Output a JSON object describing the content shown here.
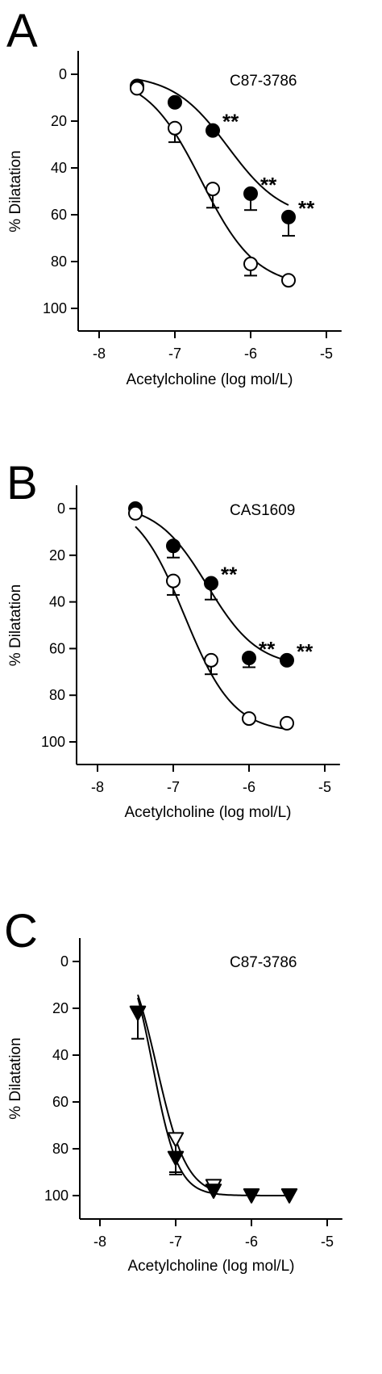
{
  "chart_data": [
    {
      "type": "line",
      "panel_label": "A",
      "annotation": "C87-3786",
      "xlabel": "Acetylcholine (log mol/L)",
      "ylabel": "% Dilatation",
      "xlim": [
        -8.3,
        -4.8
      ],
      "ylim": [
        110,
        -10
      ],
      "y_inverted": true,
      "xticks": [
        -8,
        -7,
        -6,
        -5
      ],
      "yticks": [
        0,
        20,
        40,
        60,
        80,
        100
      ],
      "series": [
        {
          "marker": "filled-circle",
          "x": [
            -7.5,
            -7.0,
            -6.5,
            -6.0,
            -5.5
          ],
          "y": [
            5,
            12,
            24,
            51,
            61
          ],
          "err": [
            0,
            0,
            0,
            7,
            8
          ],
          "fit": {
            "bottom": 0,
            "top": 62,
            "logEC50": -6.3,
            "hill": 1.2
          },
          "significance": [
            "",
            "",
            "**",
            "**",
            "**"
          ]
        },
        {
          "marker": "open-circle",
          "x": [
            -7.5,
            -7.0,
            -6.5,
            -6.0,
            -5.5
          ],
          "y": [
            6,
            23,
            49,
            81,
            88
          ],
          "err": [
            0,
            6,
            8,
            5,
            0
          ],
          "fit": {
            "bottom": 0,
            "top": 91,
            "logEC50": -6.65,
            "hill": 1.2
          }
        }
      ]
    },
    {
      "type": "line",
      "panel_label": "B",
      "annotation": "CAS1609",
      "xlabel": "Acetylcholine (log mol/L)",
      "ylabel": "% Dilatation",
      "xlim": [
        -8.3,
        -4.8
      ],
      "ylim": [
        110,
        -10
      ],
      "y_inverted": true,
      "xticks": [
        -8,
        -7,
        -6,
        -5
      ],
      "yticks": [
        0,
        20,
        40,
        60,
        80,
        100
      ],
      "series": [
        {
          "marker": "filled-circle",
          "x": [
            -7.5,
            -7.0,
            -6.5,
            -6.0,
            -5.5
          ],
          "y": [
            0,
            16,
            32,
            64,
            65
          ],
          "err": [
            0,
            5,
            7,
            4,
            0
          ],
          "fit": {
            "bottom": -2,
            "top": 68,
            "logEC50": -6.55,
            "hill": 1.3
          },
          "significance": [
            "",
            "",
            "**",
            "**",
            "**"
          ]
        },
        {
          "marker": "open-circle",
          "x": [
            -7.5,
            -7.0,
            -6.5,
            -6.0,
            -5.5
          ],
          "y": [
            2,
            31,
            65,
            90,
            92
          ],
          "err": [
            0,
            6,
            6,
            0,
            0
          ],
          "fit": {
            "bottom": -4,
            "top": 96,
            "logEC50": -6.85,
            "hill": 1.35
          }
        }
      ]
    },
    {
      "type": "line",
      "panel_label": "C",
      "annotation": "C87-3786",
      "xlabel": "Acetylcholine (log mol/L)",
      "ylabel": "% Dilatation",
      "xlim": [
        -8.3,
        -4.8
      ],
      "ylim": [
        110,
        -10
      ],
      "y_inverted": true,
      "xticks": [
        -8,
        -7,
        -6,
        -5
      ],
      "yticks": [
        0,
        20,
        40,
        60,
        80,
        100
      ],
      "series": [
        {
          "marker": "open-triangle-down",
          "x": [
            -7.5,
            -7.0,
            -6.5
          ],
          "y": [
            22,
            76,
            96
          ],
          "err": [
            0,
            15,
            0
          ],
          "fit": {
            "bottom": -10,
            "top": 100,
            "logEC50": -7.25,
            "hill": 2.2
          }
        },
        {
          "marker": "filled-triangle-down",
          "x": [
            -7.5,
            -7.0,
            -6.5,
            -6.0,
            -5.5
          ],
          "y": [
            22,
            84,
            98,
            100,
            100
          ],
          "err": [
            11,
            6,
            0,
            0,
            0
          ],
          "fit": {
            "bottom": -10,
            "top": 100,
            "logEC50": -7.3,
            "hill": 2.6
          }
        }
      ]
    }
  ]
}
